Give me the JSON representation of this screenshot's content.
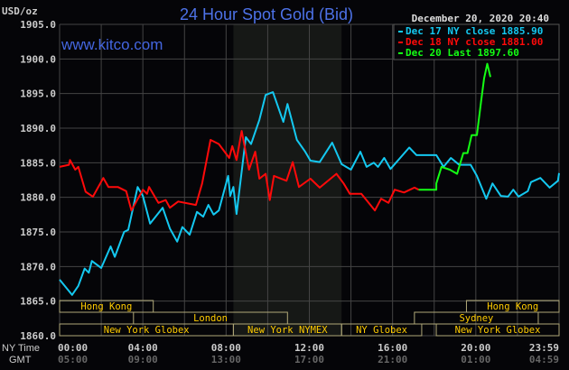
{
  "chart_data": {
    "type": "line",
    "title": "24 Hour Spot Gold (Bid)",
    "ylabel": "USD/oz",
    "watermark": "www.kitco.com",
    "timestamp": "December 20, 2020 20:40",
    "ylim": [
      1860,
      1905
    ],
    "yticks": [
      "1905.0",
      "1900.0",
      "1895.0",
      "1890.0",
      "1885.0",
      "1880.0",
      "1875.0",
      "1870.0",
      "1865.0",
      "1860.0"
    ],
    "xlim_hours": [
      0,
      24
    ],
    "grid": true,
    "legend_placement": "top-right",
    "x_axis": {
      "ny_label": "NY Time",
      "gmt_label": "GMT",
      "ny_ticks": [
        "00:00",
        "04:00",
        "08:00",
        "12:00",
        "16:00",
        "20:00",
        "23:59"
      ],
      "gmt_ticks": [
        "05:00",
        "09:00",
        "13:00",
        "17:00",
        "21:00",
        "01:00",
        "04:59"
      ]
    },
    "colors": {
      "background": "#050508",
      "grid": "#444444",
      "dec17": "#14c8f0",
      "dec18": "#ff0a0a",
      "dec20": "#14ff14",
      "title": "#4d72e8",
      "session_text": "#ffcc00",
      "session_border": "#b0a878",
      "shade": "#161816"
    },
    "highlight_period_hours": [
      8.35,
      13.55
    ],
    "series": [
      {
        "name": "Dec 17 NY close 1885.90",
        "color": "#14c8f0",
        "points": [
          [
            0,
            1868.1
          ],
          [
            0.6,
            1865.9
          ],
          [
            0.9,
            1867.2
          ],
          [
            1.2,
            1869.7
          ],
          [
            1.4,
            1869.1
          ],
          [
            1.55,
            1870.8
          ],
          [
            2.0,
            1869.8
          ],
          [
            2.45,
            1872.9
          ],
          [
            2.65,
            1871.4
          ],
          [
            3.1,
            1875.0
          ],
          [
            3.3,
            1875.3
          ],
          [
            3.75,
            1881.5
          ],
          [
            4.0,
            1880.2
          ],
          [
            4.35,
            1876.2
          ],
          [
            4.95,
            1878.5
          ],
          [
            5.3,
            1875.5
          ],
          [
            5.65,
            1873.6
          ],
          [
            5.9,
            1875.7
          ],
          [
            6.25,
            1874.6
          ],
          [
            6.6,
            1877.9
          ],
          [
            6.9,
            1877.2
          ],
          [
            7.15,
            1878.9
          ],
          [
            7.4,
            1877.5
          ],
          [
            7.65,
            1878.1
          ],
          [
            8.1,
            1883.1
          ],
          [
            8.2,
            1880.2
          ],
          [
            8.35,
            1881.5
          ],
          [
            8.5,
            1877.6
          ],
          [
            8.95,
            1888.7
          ],
          [
            9.2,
            1887.7
          ],
          [
            9.6,
            1891.2
          ],
          [
            9.9,
            1894.8
          ],
          [
            10.25,
            1895.2
          ],
          [
            10.75,
            1890.9
          ],
          [
            10.95,
            1893.5
          ],
          [
            11.4,
            1888.3
          ],
          [
            11.8,
            1886.6
          ],
          [
            12.05,
            1885.3
          ],
          [
            12.5,
            1885.1
          ],
          [
            13.1,
            1887.9
          ],
          [
            13.55,
            1884.8
          ],
          [
            14.0,
            1884.0
          ],
          [
            14.45,
            1886.6
          ],
          [
            14.75,
            1884.4
          ],
          [
            15.1,
            1885.0
          ],
          [
            15.3,
            1884.4
          ],
          [
            15.6,
            1885.7
          ],
          [
            15.9,
            1884.1
          ],
          [
            16.8,
            1887.2
          ],
          [
            17.15,
            1886.1
          ],
          [
            18.1,
            1886.1
          ],
          [
            18.45,
            1884.4
          ],
          [
            18.8,
            1885.7
          ],
          [
            19.2,
            1884.7
          ],
          [
            19.75,
            1884.7
          ],
          [
            20.05,
            1883.1
          ],
          [
            20.5,
            1879.8
          ],
          [
            20.8,
            1882.0
          ],
          [
            21.2,
            1880.2
          ],
          [
            21.55,
            1880.1
          ],
          [
            21.8,
            1881.1
          ],
          [
            22.05,
            1880.1
          ],
          [
            22.5,
            1880.9
          ],
          [
            22.65,
            1882.2
          ],
          [
            23.1,
            1882.8
          ],
          [
            23.55,
            1881.4
          ],
          [
            23.95,
            1882.4
          ],
          [
            24.0,
            1883.5
          ]
        ]
      },
      {
        "name": "Dec 18 NY close 1881.00",
        "color": "#ff0a0a",
        "points": [
          [
            0,
            1884.4
          ],
          [
            0.45,
            1884.7
          ],
          [
            0.5,
            1885.4
          ],
          [
            0.75,
            1884.0
          ],
          [
            0.9,
            1884.4
          ],
          [
            1.25,
            1880.8
          ],
          [
            1.6,
            1880.1
          ],
          [
            2.1,
            1882.8
          ],
          [
            2.35,
            1881.5
          ],
          [
            2.8,
            1881.5
          ],
          [
            3.2,
            1880.9
          ],
          [
            3.45,
            1878.1
          ],
          [
            4.0,
            1881.1
          ],
          [
            4.2,
            1880.5
          ],
          [
            4.3,
            1881.5
          ],
          [
            4.75,
            1879.2
          ],
          [
            5.1,
            1879.6
          ],
          [
            5.3,
            1878.5
          ],
          [
            5.7,
            1879.4
          ],
          [
            6.55,
            1878.9
          ],
          [
            6.85,
            1882.0
          ],
          [
            7.25,
            1888.3
          ],
          [
            7.65,
            1887.7
          ],
          [
            8.15,
            1885.7
          ],
          [
            8.3,
            1887.4
          ],
          [
            8.5,
            1885.4
          ],
          [
            8.75,
            1889.6
          ],
          [
            9.1,
            1884.0
          ],
          [
            9.4,
            1886.6
          ],
          [
            9.6,
            1882.7
          ],
          [
            9.9,
            1883.4
          ],
          [
            10.1,
            1879.6
          ],
          [
            10.3,
            1883.1
          ],
          [
            10.9,
            1882.4
          ],
          [
            11.2,
            1885.1
          ],
          [
            11.5,
            1881.5
          ],
          [
            12.05,
            1882.7
          ],
          [
            12.5,
            1881.4
          ],
          [
            13.3,
            1883.4
          ],
          [
            13.65,
            1882.0
          ],
          [
            13.95,
            1880.5
          ],
          [
            14.5,
            1880.5
          ],
          [
            15.15,
            1878.1
          ],
          [
            15.45,
            1879.8
          ],
          [
            15.8,
            1879.2
          ],
          [
            16.1,
            1881.1
          ],
          [
            16.55,
            1880.7
          ],
          [
            17.05,
            1881.4
          ],
          [
            17.25,
            1881.1
          ]
        ]
      },
      {
        "name": "Dec 20 Last 1897.60",
        "color": "#14ff14",
        "points": [
          [
            17.25,
            1881.1
          ],
          [
            18.1,
            1881.1
          ],
          [
            18.1,
            1882.0
          ],
          [
            18.35,
            1884.4
          ],
          [
            18.75,
            1884.0
          ],
          [
            19.1,
            1883.4
          ],
          [
            19.4,
            1886.4
          ],
          [
            19.6,
            1886.4
          ],
          [
            19.8,
            1889.0
          ],
          [
            20.05,
            1889.0
          ],
          [
            20.25,
            1893.8
          ],
          [
            20.4,
            1897.2
          ],
          [
            20.55,
            1899.3
          ],
          [
            20.7,
            1897.4
          ]
        ]
      }
    ],
    "legend": [
      {
        "label": "Dec 17 NY close 1885.90",
        "color": "#14c8f0"
      },
      {
        "label": "Dec 18 NY close 1881.00",
        "color": "#ff0a0a"
      },
      {
        "label": "Dec 20 Last 1897.60",
        "color": "#14ff14"
      }
    ],
    "sessions": [
      {
        "label": "Hong Kong",
        "row": 0,
        "start_hour": 0,
        "end_hour": 4.5
      },
      {
        "label": "Hong Kong",
        "row": 0,
        "start_hour": 19.55,
        "end_hour": 24
      },
      {
        "label": "London",
        "row": 1,
        "start_hour": 3.55,
        "end_hour": 10.95
      },
      {
        "label": "Sydney",
        "row": 1,
        "start_hour": 17.05,
        "end_hour": 23.0
      },
      {
        "label": "New York Globex",
        "row": 2,
        "start_hour": 0,
        "end_hour": 8.35
      },
      {
        "label": "New York NYMEX",
        "row": 2,
        "start_hour": 8.35,
        "end_hour": 13.55
      },
      {
        "label": "NY Globex",
        "row": 2,
        "start_hour": 13.55,
        "end_hour": 17.4
      },
      {
        "label": "New York Globex",
        "row": 2,
        "start_hour": 18.1,
        "end_hour": 24
      }
    ]
  }
}
